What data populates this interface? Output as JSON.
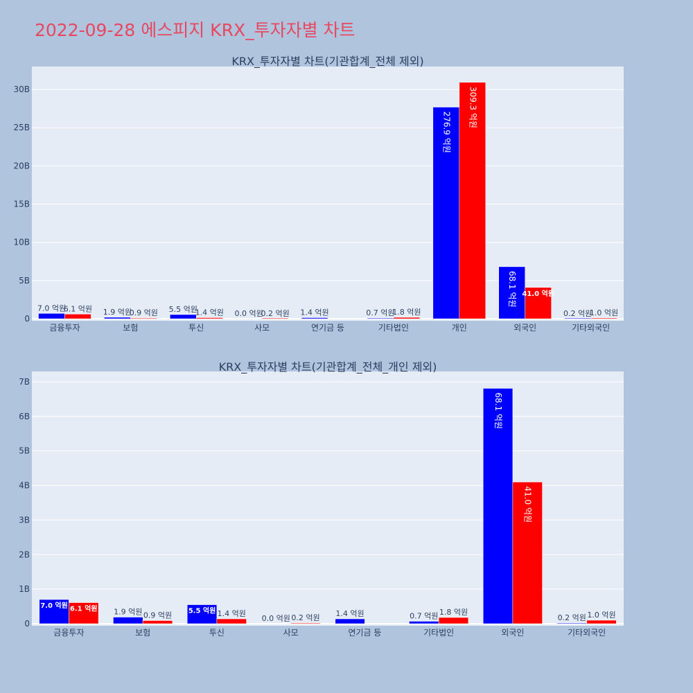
{
  "title": "2022-09-28 에스피지 KRX_투자자별 차트",
  "colors": {
    "background": "#b0c4de",
    "plot_bg": "#e5ecf6",
    "title": "#e8475f",
    "sell": "#0000ff",
    "buy": "#ff0000"
  },
  "chart_data": [
    {
      "type": "bar",
      "title": "KRX_투자자별 차트(기관합계_전체 제외)",
      "categories": [
        "금융투자",
        "보험",
        "투신",
        "사모",
        "연기금 등",
        "기타법인",
        "개인",
        "외국인",
        "기타외국인"
      ],
      "series": [
        {
          "color": "#0000ff",
          "values": [
            0.7,
            0.19,
            0.55,
            0.0,
            0.14,
            0.07,
            27.69,
            6.81,
            0.02
          ],
          "labels": [
            "7.0 억원",
            "1.9 억원",
            "5.5 억원",
            "0.0 억원",
            "1.4 억원",
            "0.7 억원",
            "276.9 억원",
            "68.1 억원",
            "0.2 억원"
          ]
        },
        {
          "color": "#ff0000",
          "values": [
            0.61,
            0.09,
            0.14,
            0.02,
            0.0,
            0.18,
            30.93,
            4.1,
            0.1
          ],
          "labels": [
            "6.1 억원",
            "0.9 억원",
            "1.4 억원",
            "0.2 억원",
            "",
            "1.8 억원",
            "309.3 억원",
            "41.0 억원",
            "1.0 억원"
          ]
        }
      ],
      "ylim": [
        0,
        33
      ],
      "yticks": [
        0,
        5,
        10,
        15,
        20,
        25,
        30
      ],
      "ytick_labels": [
        "0",
        "5B",
        "10B",
        "15B",
        "20B",
        "25B",
        "30B"
      ],
      "grid": true
    },
    {
      "type": "bar",
      "title": "KRX_투자자별 차트(기관합계_전체_개인 제외)",
      "categories": [
        "금융투자",
        "보험",
        "투신",
        "사모",
        "연기금 등",
        "기타법인",
        "외국인",
        "기타외국인"
      ],
      "series": [
        {
          "color": "#0000ff",
          "values": [
            0.7,
            0.19,
            0.55,
            0.0,
            0.14,
            0.07,
            6.81,
            0.02
          ],
          "labels": [
            "7.0 억원",
            "1.9 억원",
            "5.5 억원",
            "0.0 억원",
            "1.4 억원",
            "0.7 억원",
            "68.1 억원",
            "0.2 억원"
          ]
        },
        {
          "color": "#ff0000",
          "values": [
            0.61,
            0.09,
            0.14,
            0.02,
            0.0,
            0.18,
            4.1,
            0.1
          ],
          "labels": [
            "6.1 억원",
            "0.9 억원",
            "1.4 억원",
            "0.2 억원",
            "",
            "1.8 억원",
            "41.0 억원",
            "1.0 억원"
          ]
        }
      ],
      "ylim": [
        0,
        7.3
      ],
      "yticks": [
        0,
        1,
        2,
        3,
        4,
        5,
        6,
        7
      ],
      "ytick_labels": [
        "0",
        "1B",
        "2B",
        "3B",
        "4B",
        "5B",
        "6B",
        "7B"
      ],
      "grid": true
    }
  ]
}
